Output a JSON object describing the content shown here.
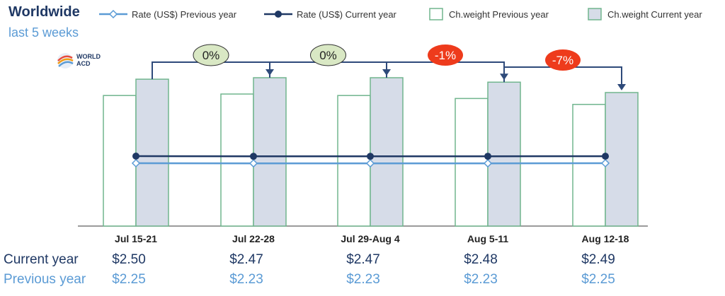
{
  "header": {
    "title": "Worldwide",
    "subtitle": "last 5 weeks"
  },
  "logo": {
    "line1": "WORLD",
    "line2": "ACD"
  },
  "legend": [
    {
      "label": "Rate (US$) Previous year",
      "icon": "line-diamond-icon",
      "color": "#5b9bd5"
    },
    {
      "label": "Rate (US$) Current year",
      "icon": "line-dot-icon",
      "color": "#1f3864"
    },
    {
      "label": "Ch.weight Previous year",
      "icon": "box-icon",
      "color": "#70b58e"
    },
    {
      "label": "Ch.weight Current year",
      "icon": "box-filled-icon",
      "color": "#70b58e"
    }
  ],
  "table": {
    "current_label": "Current year",
    "previous_label": "Previous year"
  },
  "chart_data": {
    "type": "bar",
    "categories": [
      "Jul 15-21",
      "Jul 22-28",
      "Jul 29-Aug 4",
      "Aug 5-11",
      "Aug 12-18"
    ],
    "bar_series": [
      {
        "name": "Ch.weight Previous year",
        "values": [
          0.88,
          0.89,
          0.88,
          0.86,
          0.82
        ]
      },
      {
        "name": "Ch.weight Current year",
        "values": [
          0.99,
          1.0,
          1.0,
          0.97,
          0.9
        ]
      }
    ],
    "line_series": [
      {
        "name": "Rate (US$) Previous year",
        "values": [
          2.25,
          2.23,
          2.23,
          2.23,
          2.25
        ],
        "labels": [
          "$2.25",
          "$2.23",
          "$2.23",
          "$2.23",
          "$2.25"
        ]
      },
      {
        "name": "Rate (US$) Current year",
        "values": [
          2.5,
          2.47,
          2.47,
          2.48,
          2.49
        ],
        "labels": [
          "$2.50",
          "$2.47",
          "$2.47",
          "$2.48",
          "$2.49"
        ]
      }
    ],
    "changes": [
      "0%",
      "0%",
      "-1%",
      "-7%"
    ],
    "change_colors": [
      "#d9e8c4",
      "#d9e8c4",
      "#ee3b1c",
      "#ee3b1c"
    ],
    "colors": {
      "bar_prev_border": "#70b58e",
      "bar_curr_fill": "#d6dce8",
      "line_prev": "#5b9bd5",
      "line_curr": "#1f3864",
      "connector": "#2e4a7a"
    },
    "grid": false
  }
}
